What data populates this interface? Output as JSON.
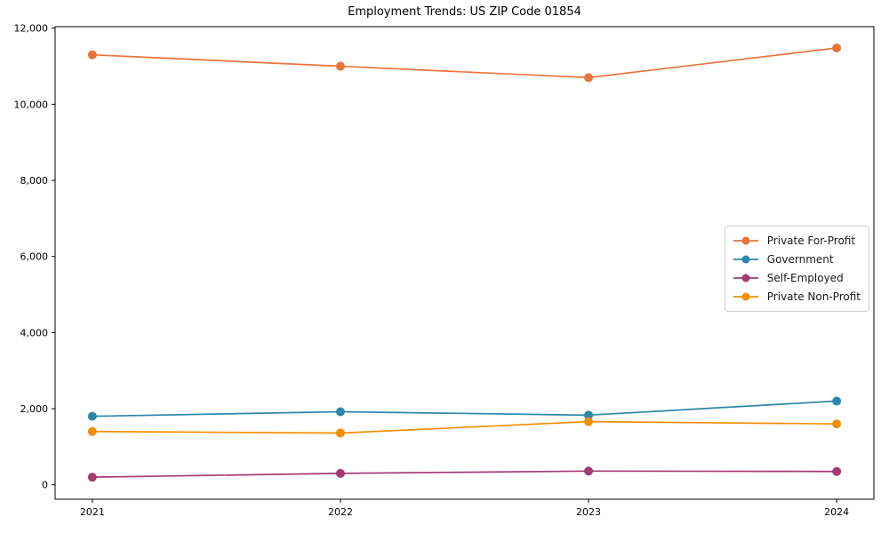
{
  "chart_data": {
    "type": "line",
    "title": "Employment Trends: US ZIP Code 01854",
    "categories": [
      "2021",
      "2022",
      "2023",
      "2024"
    ],
    "series": [
      {
        "name": "Private For-Profit",
        "color": "#E8743B",
        "values": [
          11300,
          11000,
          10700,
          11480
        ]
      },
      {
        "name": "Government",
        "color": "#2E86AB",
        "values": [
          1800,
          1920,
          1830,
          2200
        ]
      },
      {
        "name": "Self-Employed",
        "color": "#A23B72",
        "values": [
          200,
          300,
          360,
          350
        ]
      },
      {
        "name": "Private Non-Profit",
        "color": "#F18F01",
        "values": [
          1400,
          1360,
          1660,
          1600
        ]
      }
    ],
    "xlabel": "",
    "ylabel": "",
    "ylim": [
      -380,
      12040
    ],
    "yticks": [
      0,
      2000,
      4000,
      6000,
      8000,
      10000,
      12000
    ],
    "x_margin": 0.05,
    "grid": false,
    "legend_position": "center right",
    "marker": "circle",
    "line_width": 1.7,
    "marker_radius": 5,
    "axis_color": "#000000",
    "background": "#ffffff"
  }
}
